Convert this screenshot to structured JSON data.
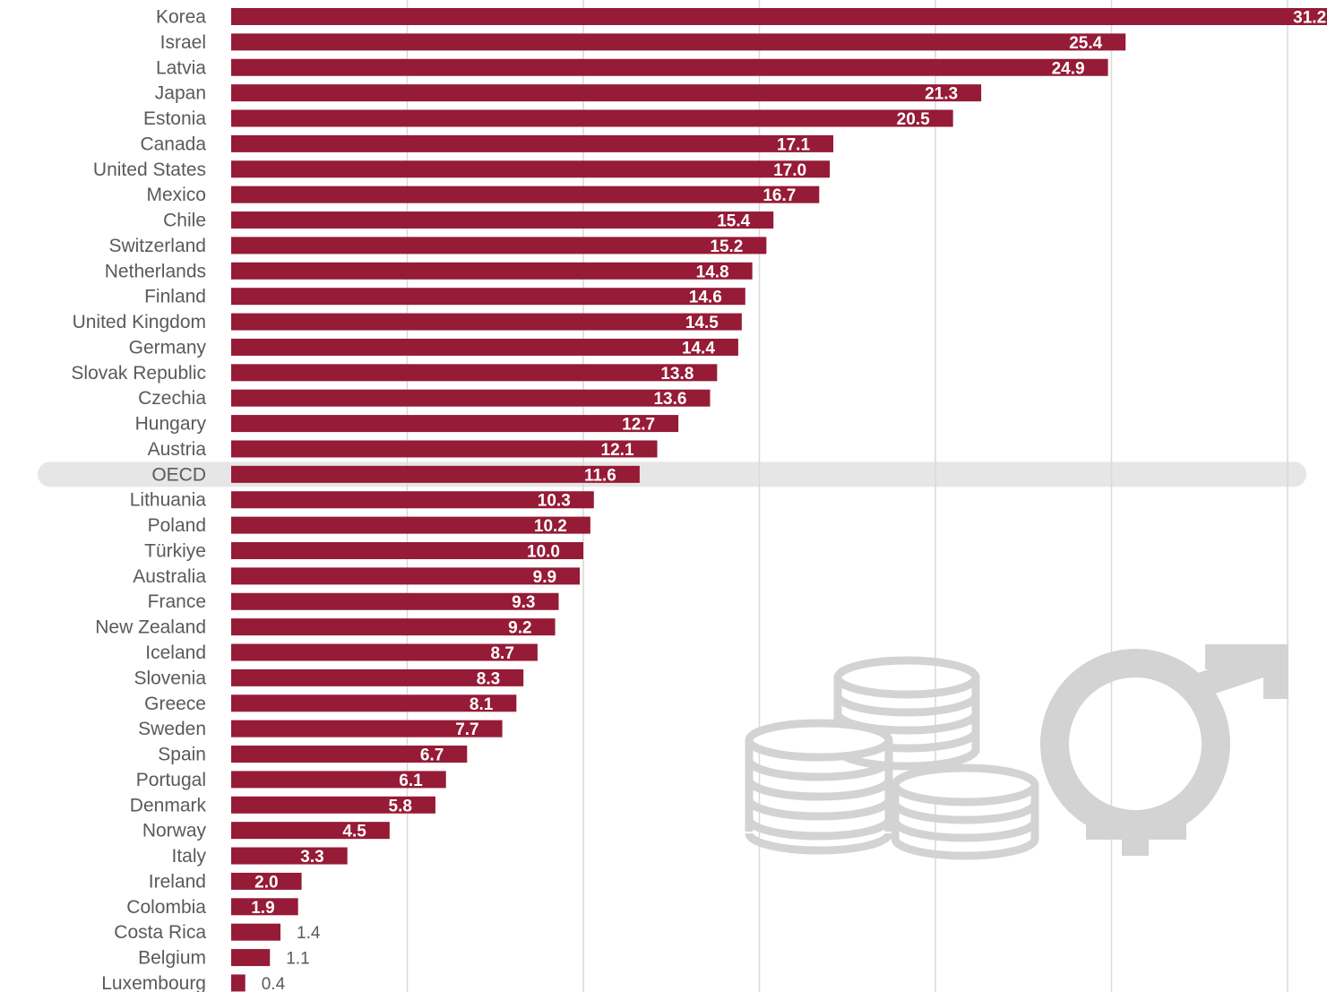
{
  "chart_data": {
    "type": "bar",
    "orientation": "horizontal",
    "title": "",
    "xlabel": "",
    "ylabel": "",
    "xlim": [
      0,
      31.2
    ],
    "grid": true,
    "legend": "none",
    "highlight_category": "OECD",
    "colors": {
      "bar": "#951b37",
      "grid": "#d9d9d9",
      "highlight_band": "#e6e6e6",
      "icon": "#d3d3d3"
    },
    "decorations": [
      "coins-icon",
      "gender-symbol-icon"
    ],
    "categories": [
      "Korea",
      "Israel",
      "Latvia",
      "Japan",
      "Estonia",
      "Canada",
      "United States",
      "Mexico",
      "Chile",
      "Switzerland",
      "Netherlands",
      "Finland",
      "United Kingdom",
      "Germany",
      "Slovak Republic",
      "Czechia",
      "Hungary",
      "Austria",
      "OECD",
      "Lithuania",
      "Poland",
      "Türkiye",
      "Australia",
      "France",
      "New Zealand",
      "Iceland",
      "Slovenia",
      "Greece",
      "Sweden",
      "Spain",
      "Portugal",
      "Denmark",
      "Norway",
      "Italy",
      "Ireland",
      "Colombia",
      "Costa Rica",
      "Belgium",
      "Luxembourg"
    ],
    "values": [
      31.2,
      25.4,
      24.9,
      21.3,
      20.5,
      17.1,
      17.0,
      16.7,
      15.4,
      15.2,
      14.8,
      14.6,
      14.5,
      14.4,
      13.8,
      13.6,
      12.7,
      12.1,
      11.6,
      10.3,
      10.2,
      10.0,
      9.9,
      9.3,
      9.2,
      8.7,
      8.3,
      8.1,
      7.7,
      6.7,
      6.1,
      5.8,
      4.5,
      3.3,
      2.0,
      1.9,
      1.4,
      1.1,
      0.4
    ],
    "value_labels": [
      "31.2",
      "25.4",
      "24.9",
      "21.3",
      "20.5",
      "17.1",
      "17.0",
      "16.7",
      "15.4",
      "15.2",
      "14.8",
      "14.6",
      "14.5",
      "14.4",
      "13.8",
      "13.6",
      "12.7",
      "12.1",
      "11.6",
      "10.3",
      "10.2",
      "10.0",
      "9.9",
      "9.3",
      "9.2",
      "8.7",
      "8.3",
      "8.1",
      "7.7",
      "6.7",
      "6.1",
      "5.8",
      "4.5",
      "3.3",
      "2.0",
      "1.9",
      "1.4",
      "1.1",
      "0.4"
    ],
    "gridlines": [
      5,
      10,
      15,
      20,
      25,
      30
    ]
  }
}
